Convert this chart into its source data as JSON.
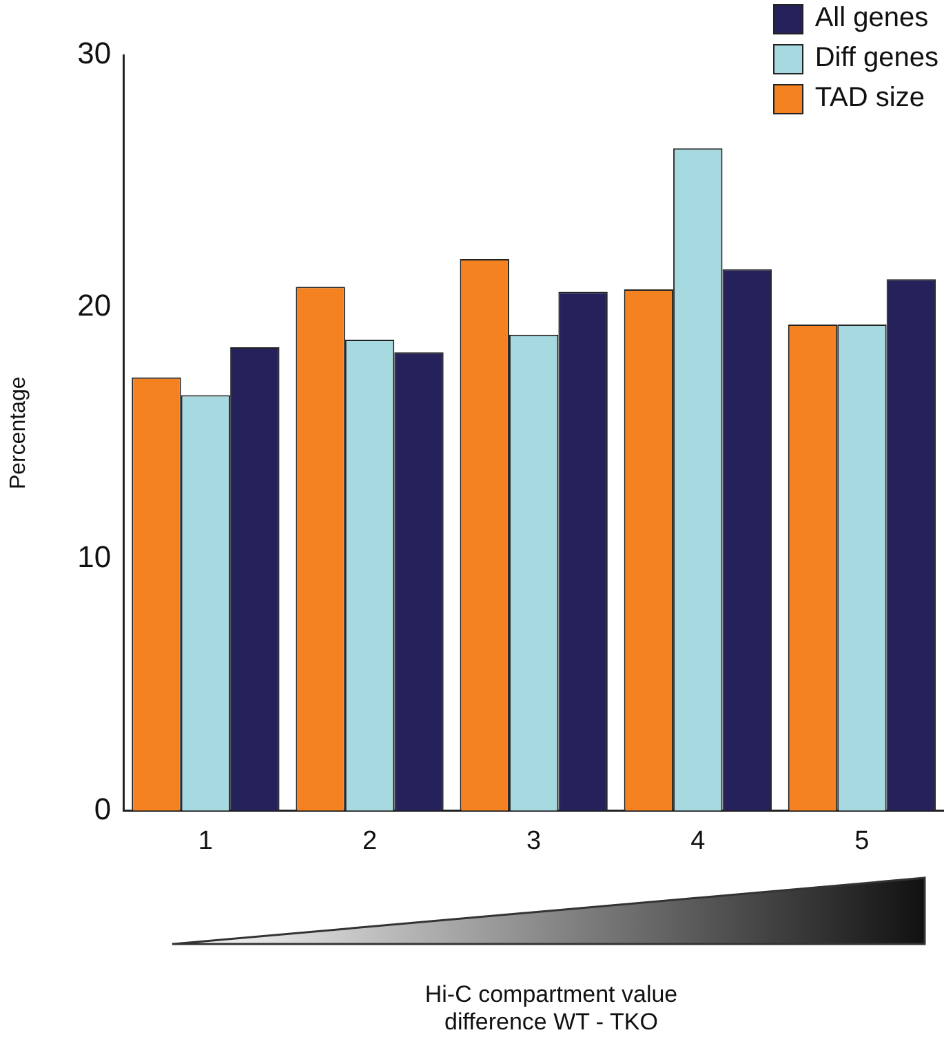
{
  "chart_data": {
    "type": "bar",
    "annotations": [
      "Hi-C compartment value\ndifference WT - TKO"
    ],
    "ylabel": "Percentage",
    "categories": [
      "1",
      "2",
      "3",
      "4",
      "5"
    ],
    "series": [
      {
        "name": "TAD size",
        "color": "#f58220",
        "values": [
          17.2,
          20.8,
          21.9,
          20.7,
          19.3
        ]
      },
      {
        "name": "Diff genes",
        "color": "#a6d9e0",
        "values": [
          16.5,
          18.7,
          18.9,
          26.3,
          19.3
        ]
      },
      {
        "name": "All genes",
        "color": "#25215a",
        "values": [
          18.4,
          18.2,
          20.6,
          21.5,
          21.1
        ]
      }
    ],
    "ylim": [
      0,
      30
    ],
    "yticks": [
      0,
      10,
      20,
      30
    ],
    "grid": false,
    "legend": "top right"
  }
}
